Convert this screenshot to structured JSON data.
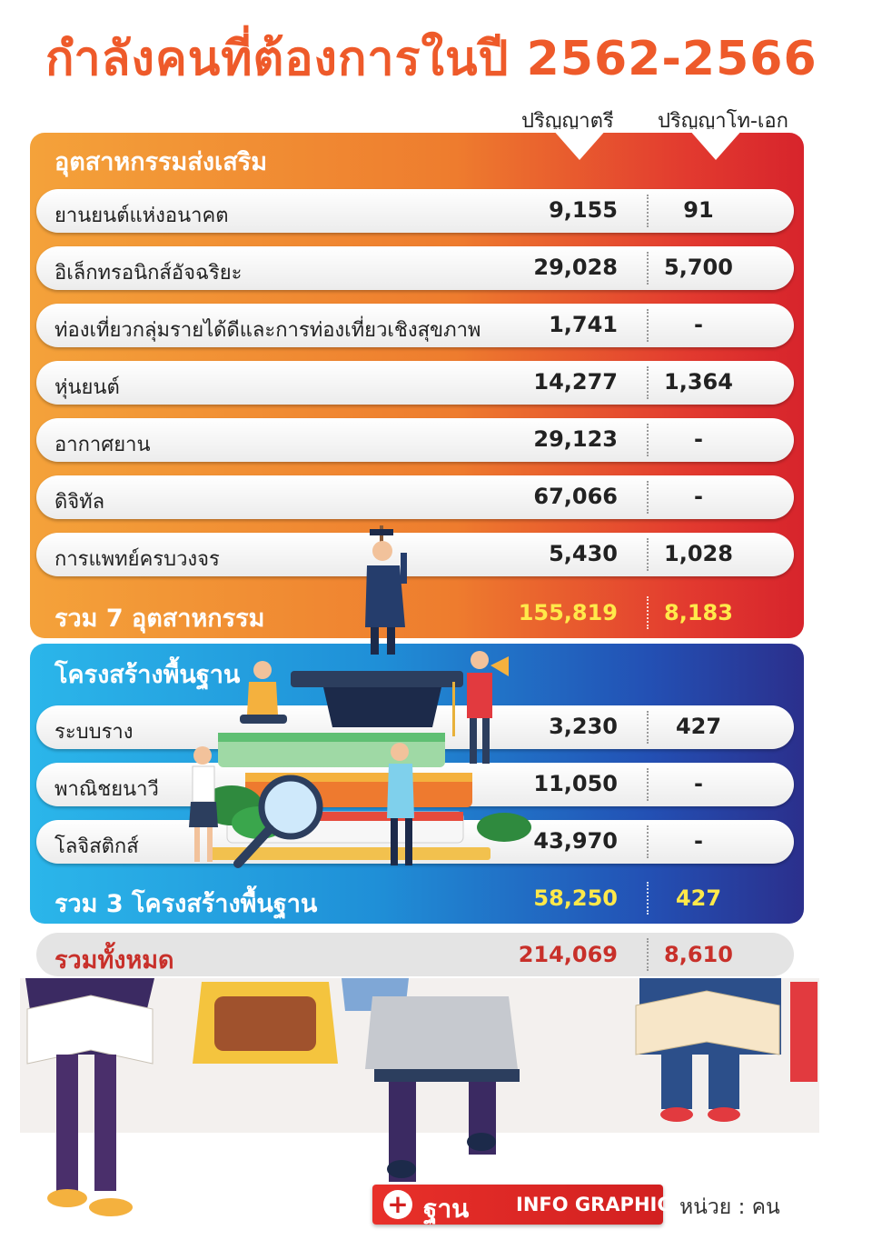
{
  "title": "กำลังคนที่ต้องการในปี 2562-2566",
  "columns": {
    "bachelor": "ปริญญาตรี",
    "graduate": "ปริญญาโท-เอก"
  },
  "chart_data": {
    "type": "table",
    "columns": [
      "ปริญญาตรี",
      "ปริญญาโท-เอก"
    ],
    "groups": [
      {
        "name": "อุตสาหกรรมส่งเสริม",
        "rows": [
          {
            "label": "ยานยนต์แห่งอนาคต",
            "bachelor": "9,155",
            "graduate": "91"
          },
          {
            "label": "อิเล็กทรอนิกส์อัจฉริยะ",
            "bachelor": "29,028",
            "graduate": "5,700"
          },
          {
            "label": "ท่องเที่ยวกลุ่มรายได้ดีและการท่องเที่ยวเชิงสุขภาพ",
            "bachelor": "1,741",
            "graduate": "-"
          },
          {
            "label": "หุ่นยนต์",
            "bachelor": "14,277",
            "graduate": "1,364"
          },
          {
            "label": "อากาศยาน",
            "bachelor": "29,123",
            "graduate": "-"
          },
          {
            "label": "ดิจิทัล",
            "bachelor": "67,066",
            "graduate": "-"
          },
          {
            "label": "การแพทย์ครบวงจร",
            "bachelor": "5,430",
            "graduate": "1,028"
          }
        ],
        "total": {
          "label": "รวม 7 อุตสาหกรรม",
          "bachelor": "155,819",
          "graduate": "8,183"
        }
      },
      {
        "name": "โครงสร้างพื้นฐาน",
        "rows": [
          {
            "label": "ระบบราง",
            "bachelor": "3,230",
            "graduate": "427"
          },
          {
            "label": "พาณิชยนาวี",
            "bachelor": "11,050",
            "graduate": "-"
          },
          {
            "label": "โลจิสติกส์",
            "bachelor": "43,970",
            "graduate": "-"
          }
        ],
        "total": {
          "label": "รวม 3 โครงสร้างพื้นฐาน",
          "bachelor": "58,250",
          "graduate": "427"
        }
      }
    ],
    "grand_total": {
      "label": "รวมทั้งหมด",
      "bachelor": "214,069",
      "graduate": "8,610"
    }
  },
  "footer": {
    "brand": "ฐาน",
    "badge": "INFO GRAPHIC",
    "unit": "หน่วย : คน"
  },
  "colors": {
    "title": "#ee5a2a",
    "orange_panel": "#ee7c2e",
    "blue_panel": "#1f8fd7",
    "total_highlight": "#ffe94a",
    "grand_total_text": "#c8302a"
  }
}
